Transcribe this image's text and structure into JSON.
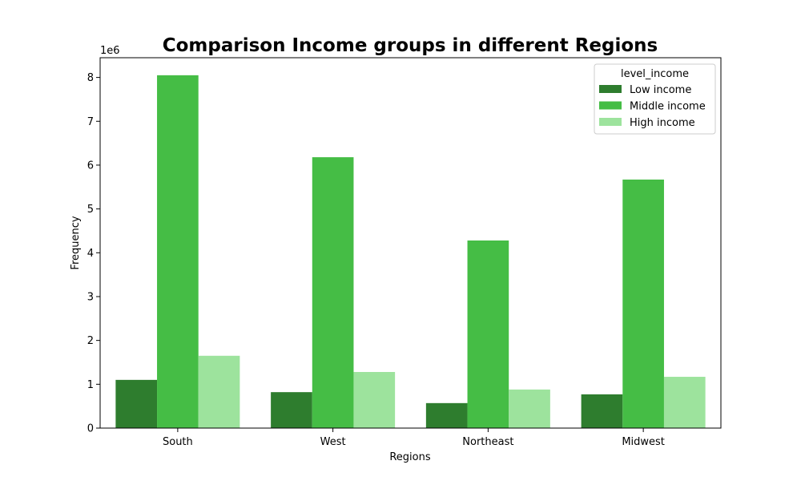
{
  "chart_data": {
    "type": "bar",
    "title": "Comparison Income groups in different Regions",
    "xlabel": "Regions",
    "ylabel": "Frequency",
    "y_offset_label": "1e6",
    "categories": [
      "South",
      "West",
      "Northeast",
      "Midwest"
    ],
    "series": [
      {
        "name": "Low income",
        "color": "#2e7d2e",
        "values": [
          1.1,
          0.82,
          0.57,
          0.77
        ]
      },
      {
        "name": "Middle income",
        "color": "#45bd45",
        "values": [
          8.05,
          6.18,
          4.28,
          5.67
        ]
      },
      {
        "name": "High income",
        "color": "#9de39d",
        "values": [
          1.65,
          1.28,
          0.88,
          1.17
        ]
      }
    ],
    "ylim": [
      0,
      8.45
    ],
    "yticks": [
      0,
      1,
      2,
      3,
      4,
      5,
      6,
      7,
      8
    ],
    "grid": false,
    "legend": {
      "title": "level_income",
      "placement": "top-right"
    }
  }
}
